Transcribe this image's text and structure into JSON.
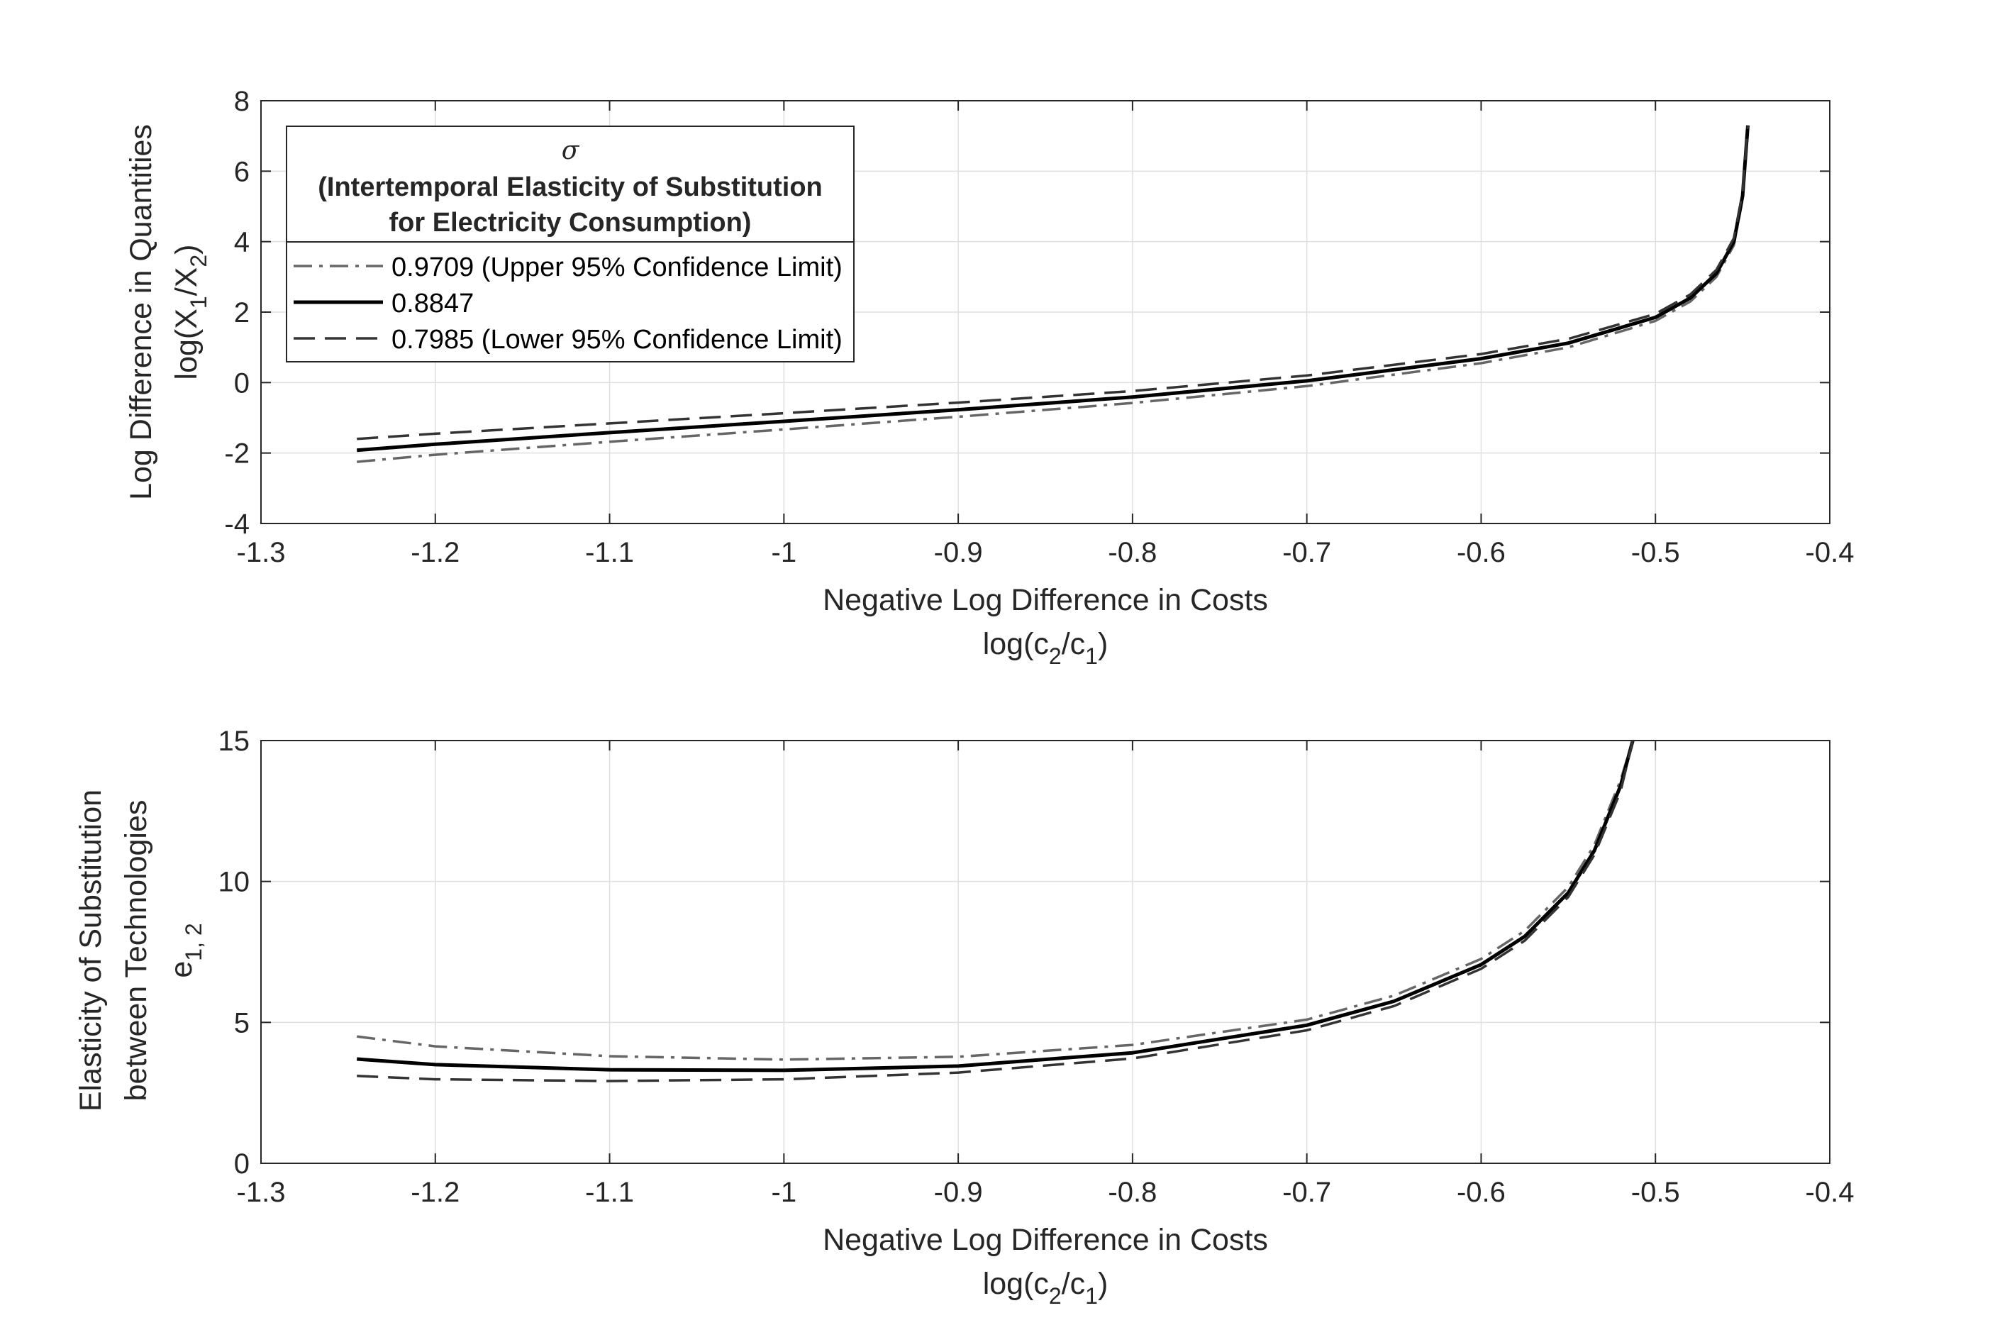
{
  "chart_data": [
    {
      "type": "line",
      "xlabel": "Negative Log Difference in Costs",
      "xlabel2": "log(c",
      "xlabel2_sub1": "2",
      "xlabel2_mid": "/c",
      "xlabel2_sub2": "1",
      "xlabel2_end": ")",
      "ylabel": "Log Difference in Quantities",
      "ylabel2": "log(X",
      "ylabel2_sub1": "1",
      "ylabel2_mid": "/X",
      "ylabel2_sub2": "2",
      "ylabel2_end": ")",
      "xlim": [
        -1.3,
        -0.4
      ],
      "ylim": [
        -4,
        8
      ],
      "xticks": [
        "-1.3",
        "-1.2",
        "-1.1",
        "-1",
        "-0.9",
        "-0.8",
        "-0.7",
        "-0.6",
        "-0.5",
        "-0.4"
      ],
      "yticks": [
        "-4",
        "-2",
        "0",
        "2",
        "4",
        "6",
        "8"
      ],
      "grid": true,
      "legend": {
        "placement": "top-left",
        "symbol": "σ",
        "title_line1": "(Intertemporal Elasticity of Substitution",
        "title_line2": "for Electricity Consumption)"
      },
      "series": [
        {
          "name": "0.9709 (Upper 95% Confidence Limit)",
          "style": "dashdot",
          "color": "#666666",
          "x": [
            -1.245,
            -1.2,
            -1.1,
            -1.0,
            -0.9,
            -0.8,
            -0.7,
            -0.6,
            -0.55,
            -0.5,
            -0.48,
            -0.465,
            -0.455,
            -0.45,
            -0.447
          ],
          "y": [
            -2.25,
            -2.05,
            -1.68,
            -1.33,
            -0.97,
            -0.58,
            -0.1,
            0.55,
            1.0,
            1.75,
            2.3,
            3.0,
            3.9,
            5.2,
            7.3
          ]
        },
        {
          "name": "0.8847",
          "style": "solid",
          "color": "#000000",
          "x": [
            -1.245,
            -1.2,
            -1.1,
            -1.0,
            -0.9,
            -0.8,
            -0.7,
            -0.6,
            -0.55,
            -0.5,
            -0.48,
            -0.465,
            -0.455,
            -0.45,
            -0.447
          ],
          "y": [
            -1.92,
            -1.75,
            -1.42,
            -1.1,
            -0.77,
            -0.41,
            0.05,
            0.68,
            1.12,
            1.85,
            2.4,
            3.1,
            4.0,
            5.3,
            7.3
          ]
        },
        {
          "name": "0.7985 (Lower 95% Confidence Limit)",
          "style": "dashed",
          "color": "#333333",
          "x": [
            -1.245,
            -1.2,
            -1.1,
            -1.0,
            -0.9,
            -0.8,
            -0.7,
            -0.6,
            -0.55,
            -0.5,
            -0.48,
            -0.465,
            -0.455,
            -0.45,
            -0.447
          ],
          "y": [
            -1.6,
            -1.45,
            -1.16,
            -0.87,
            -0.57,
            -0.24,
            0.2,
            0.81,
            1.24,
            1.95,
            2.5,
            3.2,
            4.1,
            5.4,
            7.3
          ]
        }
      ]
    },
    {
      "type": "line",
      "xlabel": "Negative Log Difference in Costs",
      "xlabel2": "log(c",
      "xlabel2_sub1": "2",
      "xlabel2_mid": "/c",
      "xlabel2_sub2": "1",
      "xlabel2_end": ")",
      "ylabel": "Elasticity of Substitution",
      "ylabel_line2": "between Technologies",
      "ylabel3": "e",
      "ylabel3_sub": "1, 2",
      "xlim": [
        -1.3,
        -0.4
      ],
      "ylim": [
        0,
        15
      ],
      "xticks": [
        "-1.3",
        "-1.2",
        "-1.1",
        "-1",
        "-0.9",
        "-0.8",
        "-0.7",
        "-0.6",
        "-0.5",
        "-0.4"
      ],
      "yticks": [
        "0",
        "5",
        "10",
        "15"
      ],
      "grid": true,
      "series": [
        {
          "name": "0.9709 (Upper 95% Confidence Limit)",
          "style": "dashdot",
          "color": "#666666",
          "x": [
            -1.245,
            -1.2,
            -1.1,
            -1.0,
            -0.9,
            -0.8,
            -0.7,
            -0.65,
            -0.6,
            -0.575,
            -0.55,
            -0.535,
            -0.52,
            -0.513
          ],
          "y": [
            4.5,
            4.15,
            3.8,
            3.68,
            3.78,
            4.2,
            5.1,
            5.95,
            7.25,
            8.25,
            9.8,
            11.3,
            13.6,
            15.0
          ]
        },
        {
          "name": "0.8847",
          "style": "solid",
          "color": "#000000",
          "x": [
            -1.245,
            -1.2,
            -1.1,
            -1.0,
            -0.9,
            -0.8,
            -0.7,
            -0.65,
            -0.6,
            -0.575,
            -0.55,
            -0.535,
            -0.52,
            -0.513
          ],
          "y": [
            3.7,
            3.5,
            3.32,
            3.3,
            3.45,
            3.92,
            4.9,
            5.75,
            7.05,
            8.05,
            9.6,
            11.1,
            13.4,
            15.0
          ]
        },
        {
          "name": "0.7985 (Lower 95% Confidence Limit)",
          "style": "dashed",
          "color": "#333333",
          "x": [
            -1.245,
            -1.2,
            -1.1,
            -1.0,
            -0.9,
            -0.8,
            -0.7,
            -0.65,
            -0.6,
            -0.575,
            -0.55,
            -0.535,
            -0.52,
            -0.513
          ],
          "y": [
            3.1,
            2.98,
            2.92,
            2.98,
            3.22,
            3.72,
            4.72,
            5.58,
            6.9,
            7.9,
            9.45,
            10.95,
            13.2,
            15.0
          ]
        }
      ]
    }
  ]
}
